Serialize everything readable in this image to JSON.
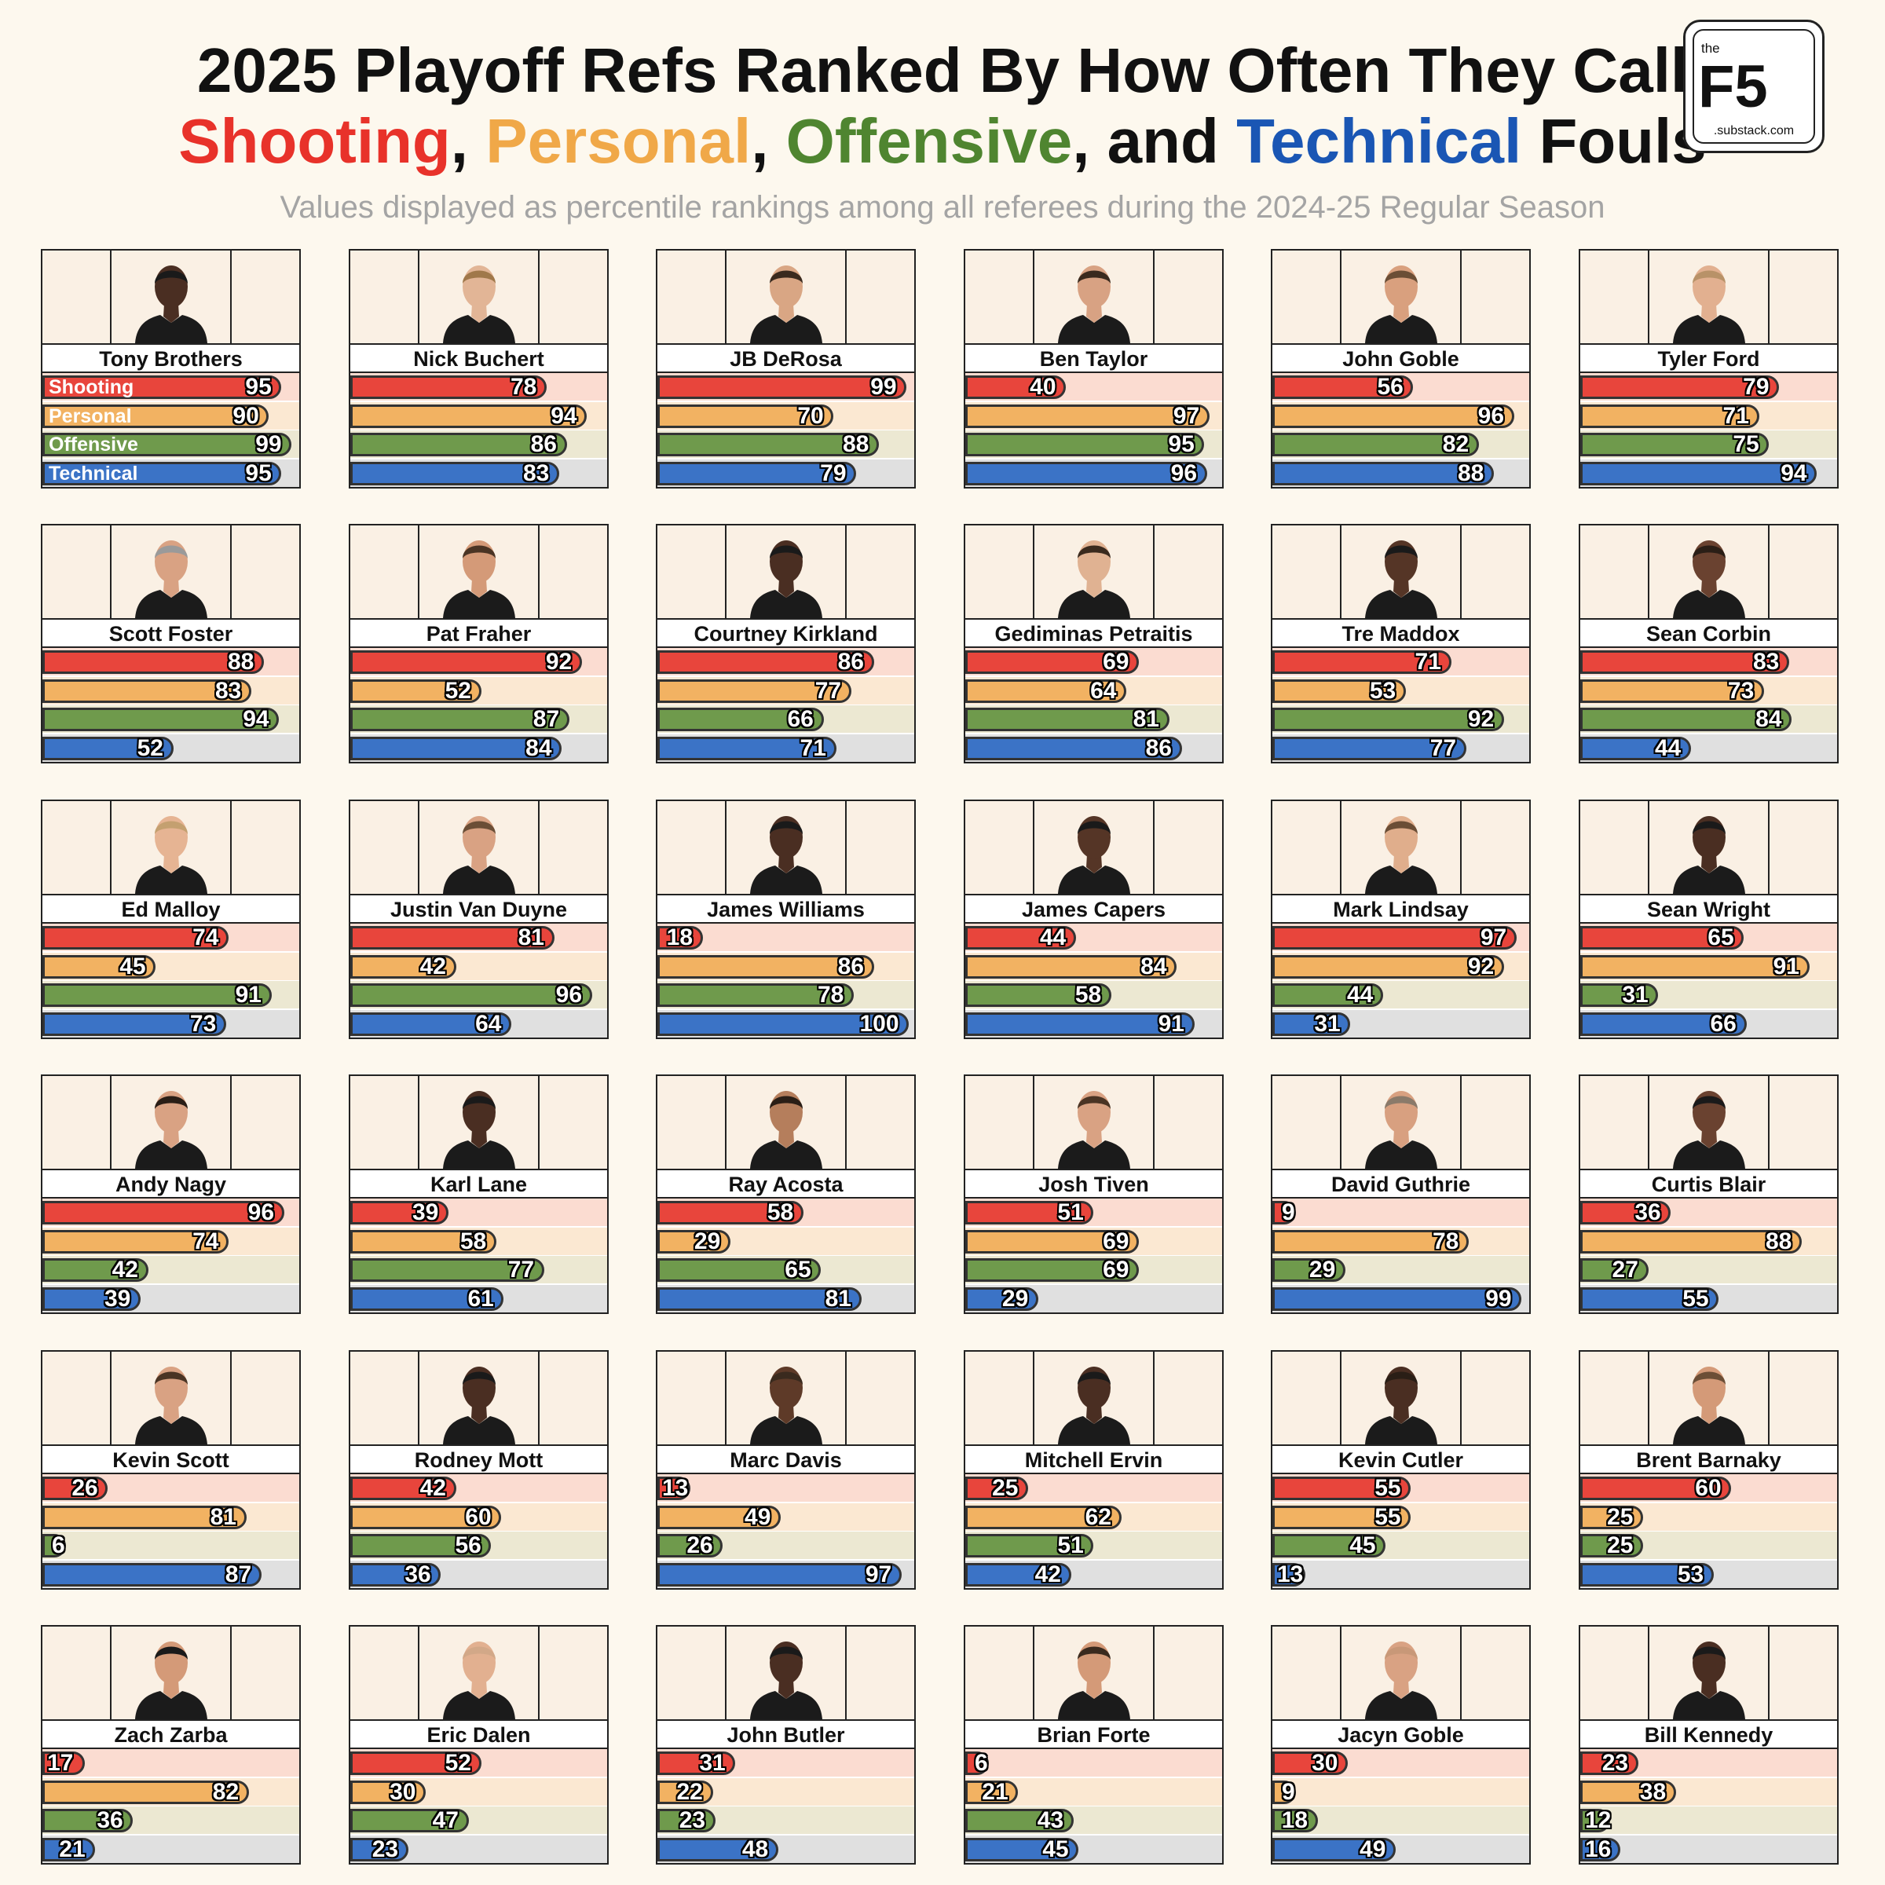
{
  "header": {
    "title_line1": "2025 Playoff Refs Ranked By How Often They Call",
    "title_line2_parts": [
      {
        "text": "Shooting",
        "color": "#e8322a"
      },
      {
        "text": ", ",
        "color": "#111111"
      },
      {
        "text": "Personal",
        "color": "#f0a848"
      },
      {
        "text": ", ",
        "color": "#111111"
      },
      {
        "text": "Offensive",
        "color": "#4f8530"
      },
      {
        "text": ", and ",
        "color": "#111111"
      },
      {
        "text": "Technical",
        "color": "#1a56b4"
      },
      {
        "text": " Fouls",
        "color": "#111111"
      }
    ],
    "subtitle": "Values displayed as percentile rankings among all referees during the 2024-25 Regular Season"
  },
  "logo": {
    "small": "the",
    "big": "F5",
    "sub": ".substack.com"
  },
  "categories": [
    {
      "name": "Shooting",
      "color": "#e8453c",
      "track": "#fbdcd1"
    },
    {
      "name": "Personal",
      "color": "#f2b262",
      "track": "#fbe8d2"
    },
    {
      "name": "Offensive",
      "color": "#6f9a4c",
      "track": "#ece8d2"
    },
    {
      "name": "Technical",
      "color": "#3b73c6",
      "track": "#e0e0e0"
    }
  ],
  "chart_data": {
    "type": "bar",
    "title": "2025 Playoff Refs Ranked By How Often They Call Shooting, Personal, Offensive, and Technical Fouls",
    "subtitle": "Values displayed as percentile rankings among all referees during the 2024-25 Regular Season",
    "series_names": [
      "Shooting",
      "Personal",
      "Offensive",
      "Technical"
    ],
    "xlim": [
      0,
      100
    ],
    "refs": [
      {
        "name": "Tony Brothers",
        "skin": "#4a2e22",
        "hair": "#1a1a1a",
        "values": [
          95,
          90,
          99,
          95
        ]
      },
      {
        "name": "Nick Buchert",
        "skin": "#e2b596",
        "hair": "#a0784a",
        "values": [
          78,
          94,
          86,
          83
        ]
      },
      {
        "name": "JB DeRosa",
        "skin": "#d9a684",
        "hair": "#3a2a1e",
        "values": [
          99,
          70,
          88,
          79
        ]
      },
      {
        "name": "Ben Taylor",
        "skin": "#d8a283",
        "hair": "#3a2a1e",
        "values": [
          40,
          97,
          95,
          96
        ]
      },
      {
        "name": "John Goble",
        "skin": "#d9a07e",
        "hair": "#6b4e36",
        "values": [
          56,
          96,
          82,
          88
        ]
      },
      {
        "name": "Tyler Ford",
        "skin": "#e2b090",
        "hair": "#b89268",
        "values": [
          79,
          71,
          75,
          94
        ]
      },
      {
        "name": "Scott Foster",
        "skin": "#d9a283",
        "hair": "#9a9a9a",
        "values": [
          88,
          83,
          94,
          52
        ]
      },
      {
        "name": "Pat Fraher",
        "skin": "#d49a78",
        "hair": "#4a3424",
        "values": [
          92,
          52,
          87,
          84
        ]
      },
      {
        "name": "Courtney Kirkland",
        "skin": "#4a2e22",
        "hair": "#1a1a1a",
        "values": [
          86,
          77,
          66,
          71
        ]
      },
      {
        "name": "Gediminas Petraitis",
        "skin": "#e0b292",
        "hair": "#3a2a1e",
        "values": [
          69,
          64,
          81,
          86
        ]
      },
      {
        "name": "Tre Maddox",
        "skin": "#553526",
        "hair": "#1a1a1a",
        "values": [
          71,
          53,
          92,
          77
        ]
      },
      {
        "name": "Sean Corbin",
        "skin": "#6a4230",
        "hair": "#2a1e16",
        "values": [
          83,
          73,
          84,
          44
        ]
      },
      {
        "name": "Ed Malloy",
        "skin": "#e6b493",
        "hair": "#c4a070",
        "values": [
          74,
          45,
          91,
          73
        ]
      },
      {
        "name": "Justin Van Duyne",
        "skin": "#d9a283",
        "hair": "#6b4e36",
        "values": [
          81,
          42,
          96,
          64
        ]
      },
      {
        "name": "James Williams",
        "skin": "#4a2e22",
        "hair": "#1a1a1a",
        "values": [
          18,
          86,
          78,
          100
        ]
      },
      {
        "name": "James Capers",
        "skin": "#553526",
        "hair": "#1a1a1a",
        "values": [
          44,
          84,
          58,
          91
        ]
      },
      {
        "name": "Mark Lindsay",
        "skin": "#e0ae8c",
        "hair": "#6b4e36",
        "values": [
          97,
          92,
          44,
          31
        ]
      },
      {
        "name": "Sean Wright",
        "skin": "#4a2e22",
        "hair": "#1a1a1a",
        "values": [
          65,
          91,
          31,
          66
        ]
      },
      {
        "name": "Andy Nagy",
        "skin": "#d9a283",
        "hair": "#2a1e16",
        "values": [
          96,
          74,
          42,
          39
        ]
      },
      {
        "name": "Karl Lane",
        "skin": "#4a2e22",
        "hair": "#1a1a1a",
        "values": [
          39,
          58,
          77,
          61
        ]
      },
      {
        "name": "Ray Acosta",
        "skin": "#b57e5c",
        "hair": "#2a1e16",
        "values": [
          58,
          29,
          65,
          81
        ]
      },
      {
        "name": "Josh Tiven",
        "skin": "#d9a283",
        "hair": "#4a3424",
        "values": [
          51,
          69,
          69,
          29
        ]
      },
      {
        "name": "David Guthrie",
        "skin": "#d8a080",
        "hair": "#8a7a6a",
        "values": [
          9,
          78,
          29,
          99
        ]
      },
      {
        "name": "Curtis Blair",
        "skin": "#6a4230",
        "hair": "#1a1a1a",
        "values": [
          36,
          88,
          27,
          55
        ]
      },
      {
        "name": "Kevin Scott",
        "skin": "#d9a283",
        "hair": "#4a3424",
        "values": [
          26,
          81,
          6,
          87
        ]
      },
      {
        "name": "Rodney Mott",
        "skin": "#4a2e22",
        "hair": "#1a1a1a",
        "values": [
          42,
          60,
          56,
          36
        ]
      },
      {
        "name": "Marc Davis",
        "skin": "#5e3a28",
        "hair": "#3a2a1e",
        "values": [
          13,
          49,
          26,
          97
        ]
      },
      {
        "name": "Mitchell Ervin",
        "skin": "#4a2e22",
        "hair": "#1a1a1a",
        "values": [
          25,
          62,
          51,
          42
        ]
      },
      {
        "name": "Kevin Cutler",
        "skin": "#4a2e22",
        "hair": "#2a1e16",
        "values": [
          55,
          55,
          45,
          13
        ]
      },
      {
        "name": "Brent Barnaky",
        "skin": "#d49a78",
        "hair": "#6b4e36",
        "values": [
          60,
          25,
          25,
          53
        ]
      },
      {
        "name": "Zach Zarba",
        "skin": "#d49a78",
        "hair": "#1a1a1a",
        "values": [
          17,
          82,
          36,
          21
        ]
      },
      {
        "name": "Eric Dalen",
        "skin": "#e2b090",
        "hair": "#d2a888",
        "values": [
          52,
          30,
          47,
          23
        ]
      },
      {
        "name": "John Butler",
        "skin": "#4a2e22",
        "hair": "#1a1a1a",
        "values": [
          31,
          22,
          23,
          48
        ]
      },
      {
        "name": "Brian Forte",
        "skin": "#d49a78",
        "hair": "#3a2a1e",
        "values": [
          6,
          21,
          43,
          45
        ]
      },
      {
        "name": "Jacyn Goble",
        "skin": "#d9a283",
        "hair": "#c89878",
        "values": [
          30,
          9,
          18,
          49
        ]
      },
      {
        "name": "Bill Kennedy",
        "skin": "#4a2e22",
        "hair": "#1a1a1a",
        "values": [
          23,
          38,
          12,
          16
        ]
      }
    ]
  }
}
